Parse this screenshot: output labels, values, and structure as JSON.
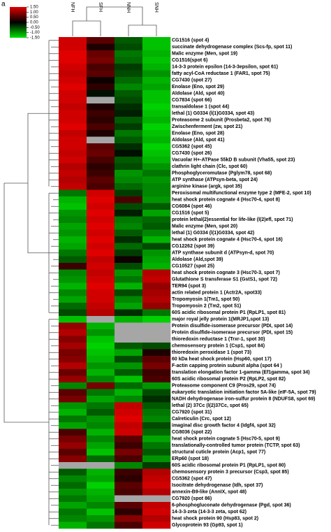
{
  "panel_label": "a",
  "chart_data": {
    "type": "heatmap",
    "columns": [
      "NFH",
      "SFH",
      "NNH",
      "SNH"
    ],
    "rows": [
      "CG1516 (spot 4)",
      "succinate dehydrogenase complex (Scs-fp, spot 11)",
      "Malic enzyme (Men, spot 19)",
      "CG1516(spot 6)",
      "14-3-3 protein epsilon (14-3-3epsilon, spot 61)",
      "fatty acyl-CoA reductase 1 (FAR1, spot 75)",
      "CG7430 (spot 27)",
      "Enolase (Eno, spot 29)",
      "Aldolase (Ald, spot 40)",
      "CG7834 (spot 66)",
      "transaldolase 1 (spot 44)",
      "lethal (1) G0334 (l(1)G0334, spot 43)",
      "Proteasome 2 subunit (Prosbeta2, spot 76)",
      "Zwischenferment (zw, spot 21)",
      "Enolase (Eno, spot 28)",
      "Aldolase (Ald, spot 41)",
      "CG5362 (spot 45)",
      "CG7430 (spot 26)",
      "Vacuolar H+-ATPase 55kD B subunit (Vha55, spot 23)",
      "clathrin light chain (Clc, spot 60)",
      "Phosphoglyceromutase (Pglym78, spot 68)",
      "ATP synthase (ATPsyn-beta, spot 24)",
      "arginine kinase (argk, spot 35)",
      "Peroxisomal multifunctional enzyme type 2 (MFE-2, spot 10)",
      "heat shock protein cognate 4 (Hsc70-4, spot 8)",
      "CG6084 (spot 46)",
      "CG1516 (spot 5)",
      "protein lethal(2)essential for life-like (l(2)efl, spot 71)",
      "Malic enzyme (Men, spot 20)",
      "lethal (1) G0334 (l(1)G0334, spot 42)",
      "heat shock protein cognate 4 (Hsc70-4, spot 16)",
      "CG12262 (spot 39)",
      "ATP synthase subunit d (ATPsyn-d, spot 70)",
      "Aldolase (Ald,spot 39)",
      "CG10527 (spot 25)",
      "heat shock protein cognate 3 (Hsc70-3, spot 7)",
      "Glutathione S transferase S1 (GstS1, spot 72)",
      "TER94 (spot 3)",
      "actin related protein 1 (Actr2A, spot33)",
      "Tropomyosin 1(Tm1, spot 50)",
      "Tropomyosin 2 (Tm2, spot 51)",
      "60S acidic ribosomal protein P1 (RpLP1, spot 81)",
      "major royal jelly protein 1(MRJP1,spot 13)",
      "Protein disulfide-isomerase precursor (PDI, spot 14)",
      "Protein disulfide-isomerase precursor (PDI, spot 15)",
      "thioredoxin reductase 1 (Trxr-1, spot 30)",
      "chemosensory protein 1 (Csp1, spot 84)",
      "thioredoxin peroxidase 1 (spot 73)",
      "60 kDa heat shock protein (Hsp60, spot 17)",
      "F-actin capping protein subunit alpha (spot 64 )",
      "translation elongation factor 1-gamma (Ef1gamma, spot 34)",
      "60S acidic ribosomal protein P2 (RpLP2, spot 82)",
      "Proteasome component C9 (Pros29, spot 74)",
      "eukaryotic translation initiation factor 5A-like (eIF-5A, spot 79)",
      "NADH dehydrogenase iron-sulfur protein 8 (NDUFS8, spot 69)",
      "lethal (2) 37Cc (l(2)37Cc, spot 65)",
      "CG7920 (spot 31)",
      "Calreticulin (Crc, spot 12)",
      "imaginal disc growth factor 4 (Idgf4, spot 32)",
      "CG8036 (spot 22)",
      "heat shock protein cognate 5 (Hsc70-5, spot 9)",
      "translationally-controlled tumor protein (TCTP, spot 63)",
      "structural cuticle protein (Acp1, spot 77)",
      "ERp60 (spot 18)",
      "60S acidic ribosomal protein P1 (RpLP1, spot 80)",
      "chemosensory protein 3 precursor (Csp3, spot 85)",
      "CG5362 (spot 47)",
      "Isocitrate dehydrogenase (Idh, spot 37)",
      "annexin-B9-like (AnnIX, spot 48)",
      "CG7920 (spot 86)",
      "6-phosphogluconate dehydrogenase (Pgd, spot 36)",
      "14-3-3-zeta (14-3-3 zeta, spot 62)",
      "heat shock protein 90 (Hsp83, spot 2)",
      "Glycoprotein 93 (Gp93, spot 1)"
    ],
    "values": [
      [
        1.4,
        0.6,
        -0.6,
        -1.3
      ],
      [
        1.4,
        0.2,
        -0.5,
        -1.3
      ],
      [
        1.5,
        0.7,
        -0.8,
        -1.2
      ],
      [
        1.5,
        0.8,
        -0.7,
        -1.3
      ],
      [
        1.4,
        0.5,
        -0.4,
        -1.2
      ],
      [
        1.3,
        0.6,
        -0.5,
        -1.0
      ],
      [
        1.4,
        0.1,
        -0.7,
        -1.2
      ],
      [
        1.5,
        0.3,
        -0.9,
        -1.1
      ],
      [
        1.4,
        -0.1,
        -0.6,
        -1.3
      ],
      [
        1.4,
        null,
        -0.5,
        -1.3
      ],
      [
        1.3,
        0.2,
        -0.3,
        -1.4
      ],
      [
        1.4,
        0.4,
        -0.2,
        -1.3
      ],
      [
        1.4,
        0.3,
        -0.6,
        -1.2
      ],
      [
        1.5,
        0.5,
        -0.4,
        -1.4
      ],
      [
        1.3,
        0.2,
        -0.8,
        -1.3
      ],
      [
        1.4,
        null,
        -0.6,
        -1.2
      ],
      [
        1.4,
        0.6,
        -0.3,
        -1.4
      ],
      [
        1.3,
        0.7,
        -0.1,
        -1.3
      ],
      [
        1.4,
        0.5,
        -0.6,
        -1.2
      ],
      [
        1.2,
        0.3,
        -0.5,
        -1.0
      ],
      [
        1.3,
        0.4,
        -1.0,
        -0.8
      ],
      [
        1.2,
        0.6,
        -0.9,
        -1.0
      ],
      [
        1.3,
        0.5,
        -0.7,
        -0.9
      ],
      [
        -0.8,
        1.4,
        -0.4,
        -0.9
      ],
      [
        -1.2,
        1.5,
        0.5,
        -1.0
      ],
      [
        -1.3,
        1.4,
        -0.5,
        -0.6
      ],
      [
        -1.0,
        1.5,
        -0.2,
        -1.1
      ],
      [
        -0.9,
        1.4,
        -0.8,
        -0.7
      ],
      [
        -1.1,
        1.5,
        -0.9,
        -0.6
      ],
      [
        -1.0,
        1.4,
        -0.6,
        -0.9
      ],
      [
        -1.2,
        1.5,
        -0.3,
        -1.2
      ],
      [
        -1.1,
        1.4,
        -0.7,
        -0.5
      ],
      [
        -0.8,
        1.5,
        -0.4,
        -1.0
      ],
      [
        -0.6,
        1.3,
        0.1,
        -1.1
      ],
      [
        0.4,
        1.4,
        -0.5,
        -1.2
      ],
      [
        -0.9,
        1.3,
        -1.0,
        1.2
      ],
      [
        -1.0,
        1.4,
        -0.8,
        1.3
      ],
      [
        -1.2,
        1.5,
        -1.2,
        1.0
      ],
      [
        -0.9,
        1.4,
        -0.5,
        1.1
      ],
      [
        -1.1,
        1.4,
        -0.9,
        1.2
      ],
      [
        -0.7,
        1.3,
        -1.1,
        1.0
      ],
      [
        -0.5,
        1.2,
        -0.3,
        -0.8
      ],
      [
        -1.3,
        null,
        -1.2,
        -1.4
      ],
      [
        1.0,
        -1.2,
        null,
        null
      ],
      [
        1.2,
        -1.0,
        null,
        null
      ],
      [
        0.9,
        -1.3,
        null,
        null
      ],
      [
        1.1,
        -1.4,
        -0.6,
        -0.5
      ],
      [
        0.8,
        -1.3,
        -1.1,
        0.2
      ],
      [
        0.9,
        -1.2,
        -0.5,
        0.6
      ],
      [
        1.2,
        -1.0,
        -1.0,
        0.8
      ],
      [
        0.7,
        -1.2,
        -0.6,
        0.4
      ],
      [
        1.0,
        -0.9,
        -1.3,
        0.5
      ],
      [
        -0.9,
        0.8,
        -0.7,
        -1.0
      ],
      [
        0.6,
        -0.8,
        -1.2,
        -0.5
      ],
      [
        0.8,
        -1.1,
        -0.9,
        -0.3
      ],
      [
        -1.0,
        -0.8,
        1.3,
        -0.6
      ],
      [
        -1.2,
        -0.6,
        1.4,
        -0.8
      ],
      [
        -0.8,
        -1.0,
        1.5,
        -0.9
      ],
      [
        -1.1,
        -0.9,
        1.3,
        -0.5
      ],
      [
        0.5,
        -1.2,
        1.4,
        -0.7
      ],
      [
        0.8,
        -0.9,
        0.6,
        -1.1
      ],
      [
        1.0,
        -1.1,
        0.4,
        -0.8
      ],
      [
        0.6,
        -1.3,
        0.8,
        -0.6
      ],
      [
        0.9,
        -0.7,
        0.5,
        -1.0
      ],
      [
        null,
        null,
        -0.9,
        -0.4
      ],
      [
        -0.6,
        -1.2,
        0.4,
        1.2
      ],
      [
        -0.9,
        -1.1,
        0.3,
        1.3
      ],
      [
        -0.7,
        -1.4,
        0.6,
        1.4
      ],
      [
        -1.0,
        -1.2,
        0.5,
        1.2
      ],
      [
        -0.8,
        -1.1,
        null,
        null
      ],
      [
        -1.1,
        -0.9,
        0.6,
        1.3
      ],
      [
        -0.8,
        -1.3,
        0.3,
        1.4
      ],
      [
        -0.9,
        -1.0,
        0.9,
        1.2
      ],
      [
        -1.2,
        -0.8,
        0.5,
        1.4
      ]
    ],
    "zlim": [
      -1.5,
      1.5
    ],
    "colorbar_ticks": [
      {
        "value": 1.5,
        "label": "1.50"
      },
      {
        "value": 1,
        "label": "1.00"
      },
      {
        "value": 0.5,
        "label": "0.50"
      },
      {
        "value": 0,
        "label": "0.00"
      },
      {
        "value": -0.5,
        "label": "-0.50"
      },
      {
        "value": -1,
        "label": "-1.00"
      },
      {
        "value": -1.5,
        "label": "-1.50"
      }
    ],
    "high_color": "#e00000",
    "mid_color": "#000000",
    "low_color": "#00e000",
    "missing_color": "#a6a6a6"
  }
}
